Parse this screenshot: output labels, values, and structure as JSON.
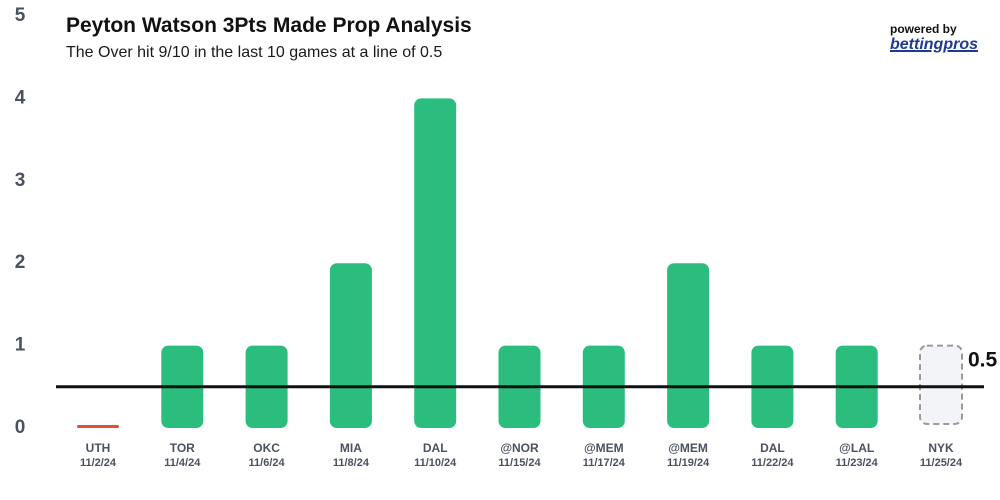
{
  "header": {
    "title": "Peyton Watson 3Pts Made Prop Analysis",
    "subtitle": "The Over hit 9/10 in the last 10 games at a line of 0.5"
  },
  "branding": {
    "powered_by": "powered by",
    "name": "bettingpros"
  },
  "colors": {
    "over": "#2bbd7e",
    "under": "#e84a3c",
    "upcoming_fill": "#f3f4f8",
    "upcoming_stroke": "#9a9a9a",
    "line": "#111111",
    "axis_text": "#4a5160"
  },
  "chart_data": {
    "type": "bar",
    "title": "Peyton Watson 3Pts Made Prop Analysis",
    "subtitle": "The Over hit 9/10 in the last 10 games at a line of 0.5",
    "ylim": [
      0,
      5
    ],
    "yticks": [
      0,
      1,
      2,
      3,
      4,
      5
    ],
    "prop_line": 0.5,
    "prop_line_label": "0.5",
    "categories": [
      {
        "team": "UTH",
        "date": "11/2/24",
        "value": 0,
        "status": "under"
      },
      {
        "team": "TOR",
        "date": "11/4/24",
        "value": 1,
        "status": "over"
      },
      {
        "team": "OKC",
        "date": "11/6/24",
        "value": 1,
        "status": "over"
      },
      {
        "team": "MIA",
        "date": "11/8/24",
        "value": 2,
        "status": "over"
      },
      {
        "team": "DAL",
        "date": "11/10/24",
        "value": 4,
        "status": "over"
      },
      {
        "team": "@NOR",
        "date": "11/15/24",
        "value": 1,
        "status": "over"
      },
      {
        "team": "@MEM",
        "date": "11/17/24",
        "value": 1,
        "status": "over"
      },
      {
        "team": "@MEM",
        "date": "11/19/24",
        "value": 2,
        "status": "over"
      },
      {
        "team": "DAL",
        "date": "11/22/24",
        "value": 1,
        "status": "over"
      },
      {
        "team": "@LAL",
        "date": "11/23/24",
        "value": 1,
        "status": "over"
      },
      {
        "team": "NYK",
        "date": "11/25/24",
        "value": null,
        "status": "upcoming"
      }
    ]
  }
}
